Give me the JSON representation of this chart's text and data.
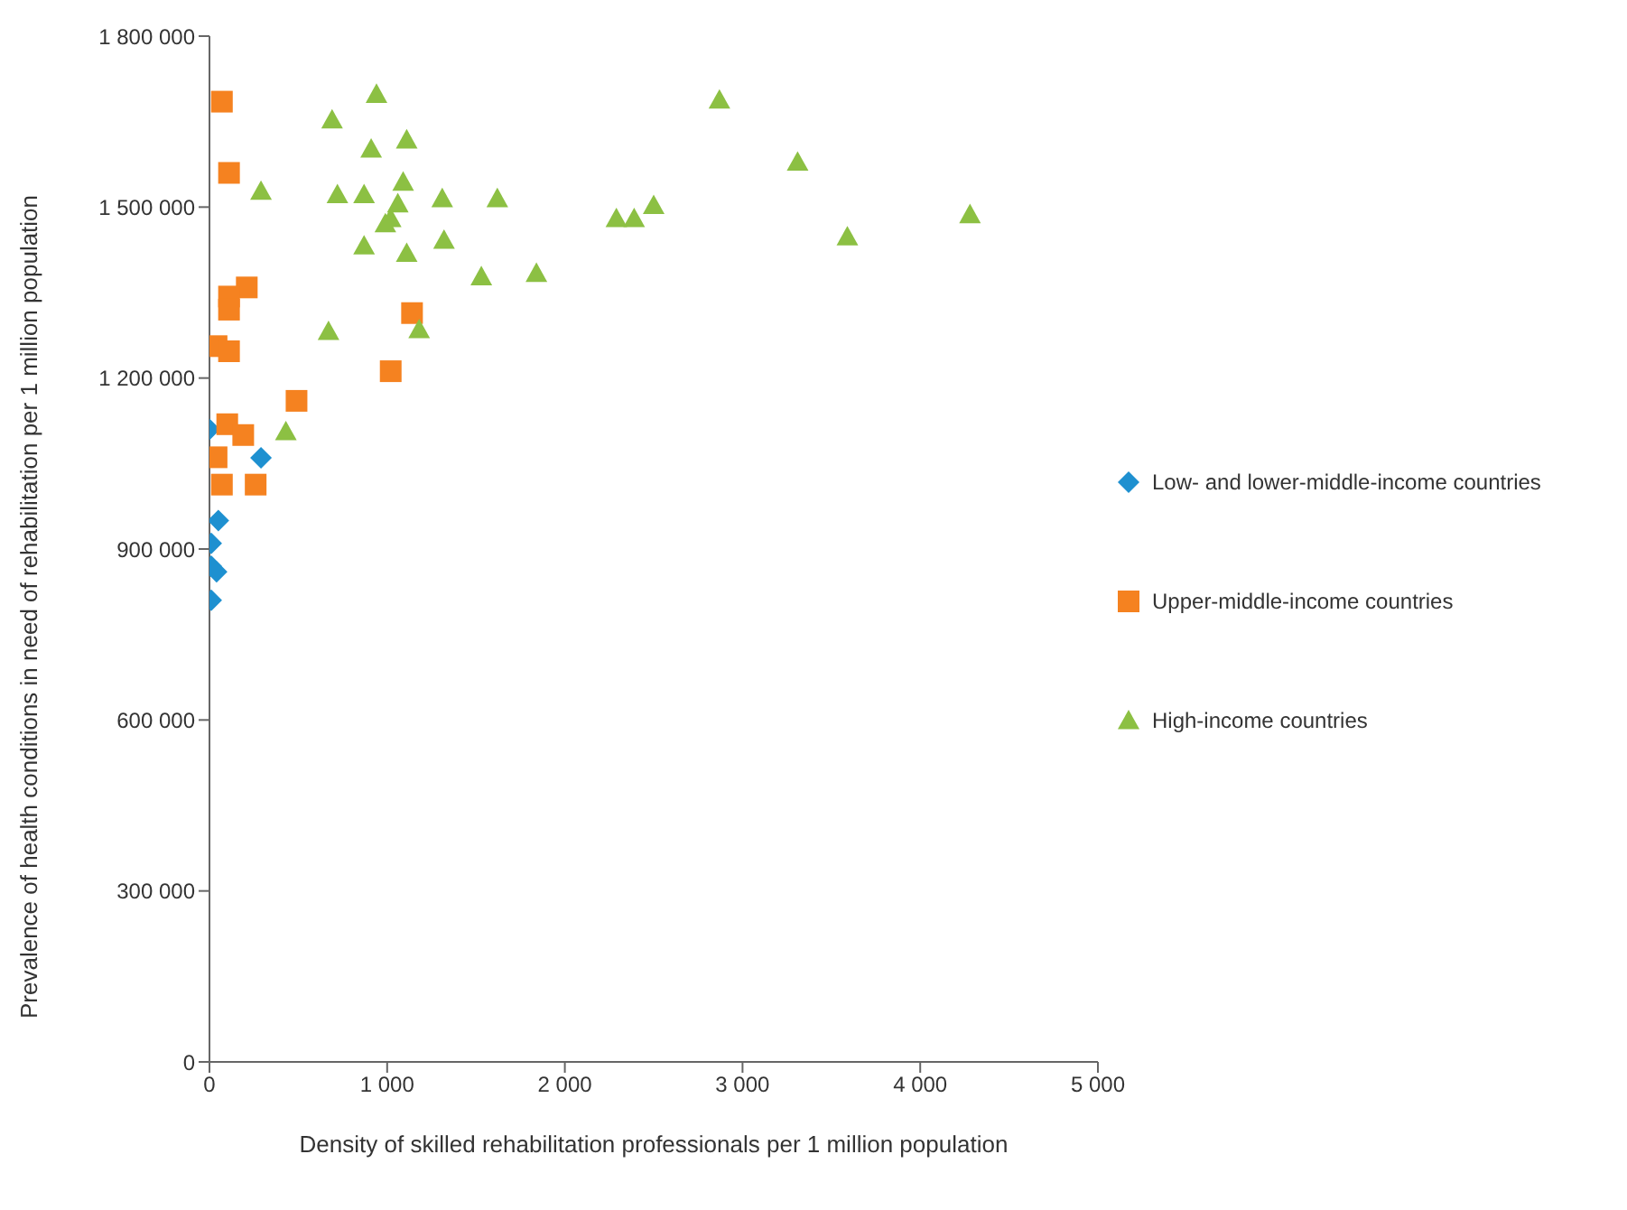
{
  "chart_data": {
    "type": "scatter",
    "xlabel": "Density of skilled rehabilitation professionals per 1 million population",
    "ylabel": "Prevalence of health conditions in need of rehabilitation per 1 million population",
    "xlim": [
      0,
      5000
    ],
    "xticks": [
      0,
      {
        "value": 1000,
        "label": "1 000"
      },
      {
        "value": 2000,
        "label": "2 000"
      },
      {
        "value": 3000,
        "label": "3 000"
      },
      {
        "value": 4000,
        "label": "4 000"
      },
      {
        "value": 5000,
        "label": "5 000"
      }
    ],
    "ylim": [
      0,
      1800000
    ],
    "yticks": [
      0,
      {
        "value": 300000,
        "label": "300 000"
      },
      {
        "value": 600000,
        "label": "600 000"
      },
      {
        "value": 900000,
        "label": "900 000"
      },
      {
        "value": 1200000,
        "label": "1 200 000"
      },
      {
        "value": 1500000,
        "label": "1 500 000"
      },
      {
        "value": 1800000,
        "label": "1 800 000"
      }
    ],
    "grid": false,
    "legend": "right",
    "series": [
      {
        "name": "Low- and lower-middle-income countries",
        "color": "#1e90d0",
        "marker": "diamond",
        "x": [
          0,
          290,
          50,
          10,
          10,
          40,
          10
        ],
        "values": [
          1110000,
          1060000,
          950000,
          910000,
          870000,
          860000,
          810000
        ]
      },
      {
        "name": "Upper-middle-income countries",
        "color": "#f58220",
        "marker": "square",
        "x": [
          70,
          110,
          210,
          110,
          110,
          40,
          110,
          1140,
          1020,
          490,
          100,
          190,
          40,
          70,
          260
        ],
        "values": [
          1685000,
          1560000,
          1359000,
          1343000,
          1320000,
          1256000,
          1247000,
          1314000,
          1212000,
          1160000,
          1119000,
          1100000,
          1061000,
          1013000,
          1013000
        ]
      },
      {
        "name": "High-income countries",
        "color": "#8cc043",
        "marker": "triangle",
        "x": [
          940,
          690,
          910,
          1110,
          720,
          870,
          1090,
          1060,
          1020,
          990,
          1310,
          1620,
          870,
          1110,
          1320,
          1530,
          1840,
          2290,
          2390,
          2500,
          2870,
          3310,
          3590,
          4280,
          670,
          1180,
          290,
          430
        ],
        "values": [
          1698000,
          1653000,
          1602000,
          1618000,
          1522000,
          1522000,
          1544000,
          1506000,
          1480000,
          1471000,
          1515000,
          1515000,
          1432000,
          1419000,
          1442000,
          1378000,
          1384000,
          1480000,
          1480000,
          1503000,
          1688000,
          1579000,
          1448000,
          1487000,
          1282000,
          1285000,
          1528000,
          1106000
        ]
      }
    ]
  }
}
